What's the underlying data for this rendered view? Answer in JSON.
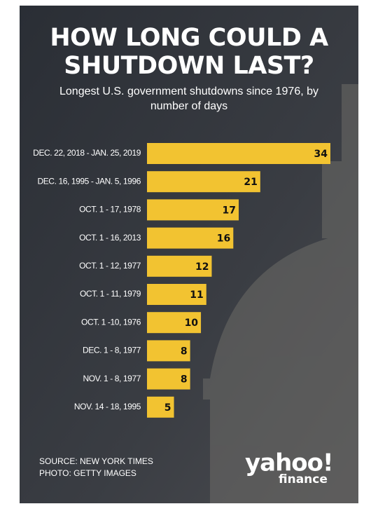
{
  "chart_data": {
    "type": "bar",
    "orientation": "horizontal",
    "title": "HOW LONG COULD A SHUTDOWN LAST?",
    "subtitle": "Longest U.S. government shutdowns since 1976, by number of days",
    "categories": [
      "DEC. 22, 2018 - JAN. 25, 2019",
      "DEC. 16, 1995 - JAN. 5, 1996",
      "OCT. 1 - 17, 1978",
      "OCT. 1 - 16, 2013",
      "OCT. 1 - 12, 1977",
      "OCT. 1 - 11, 1979",
      "OCT. 1 -10, 1976",
      "DEC. 1 - 8, 1977",
      "NOV. 1 - 8, 1977",
      "NOV. 14 - 18, 1995"
    ],
    "values": [
      34,
      21,
      17,
      16,
      12,
      11,
      10,
      8,
      8,
      5
    ],
    "color": "#f2c331",
    "source": "SOURCE: NEW YORK TIMES",
    "photo_credit": "PHOTO: GETTY IMAGES",
    "logo": {
      "brand": "yahoo!",
      "section": "finance"
    }
  }
}
